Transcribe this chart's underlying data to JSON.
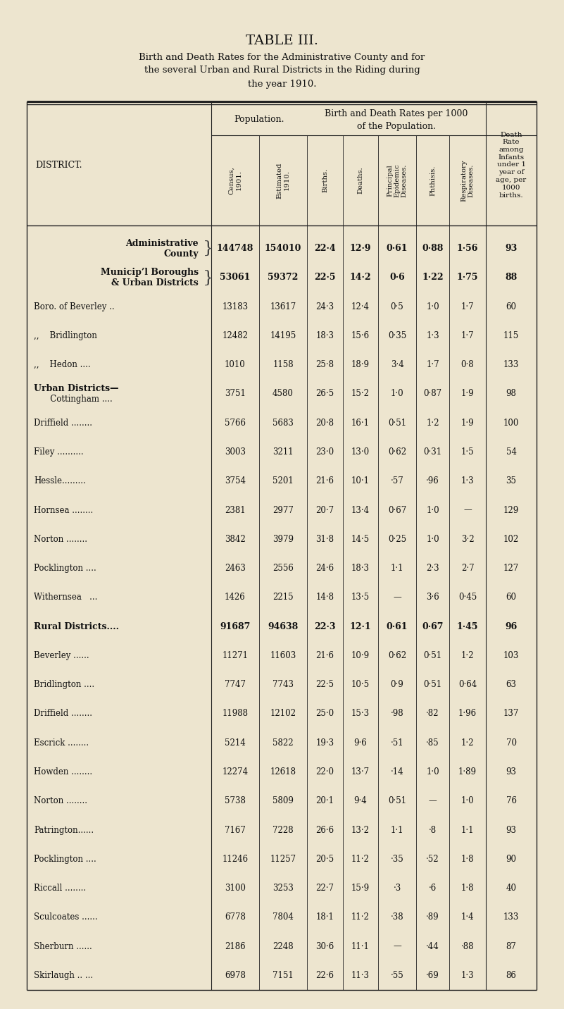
{
  "bg_color": "#ede5cf",
  "title1": "TABLE III.",
  "title2": "Birth and Death Rates for the Administrative County and for\nthe several Urban and Rural Districts in the Riding during\nthe year 1910.",
  "rows": [
    {
      "l1": "Administrative",
      "l2": "County",
      "brace": true,
      "census": "144748",
      "est": "154010",
      "births": "22·4",
      "deaths": "12·9",
      "epid": "0·61",
      "phth": "0·88",
      "resp": "1·56",
      "infant": "93",
      "style": "bold"
    },
    {
      "l1": "Municip’l Boroughs",
      "l2": "& Urban Districts",
      "brace": true,
      "census": "53061",
      "est": "59372",
      "births": "22·5",
      "deaths": "14·2",
      "epid": "0·6",
      "phth": "1·22",
      "resp": "1·75",
      "infant": "88",
      "style": "bold"
    },
    {
      "l1": "Boro. of Beverley ..",
      "l2": "",
      "census": "13183",
      "est": "13617",
      "births": "24·3",
      "deaths": "12·4",
      "epid": "0·5",
      "phth": "1·0",
      "resp": "1·7",
      "infant": "60",
      "style": "normal"
    },
    {
      "l1": ",,    Bridlington",
      "l2": "",
      "census": "12482",
      "est": "14195",
      "births": "18·3",
      "deaths": "15·6",
      "epid": "0·35",
      "phth": "1·3",
      "resp": "1·7",
      "infant": "115",
      "style": "normal"
    },
    {
      "l1": ",,    Hedon ....",
      "l2": "",
      "census": "1010",
      "est": "1158",
      "births": "25·8",
      "deaths": "18·9",
      "epid": "3·4",
      "phth": "1·7",
      "resp": "0·8",
      "infant": "133",
      "style": "normal"
    },
    {
      "l1": "Urban Districts—",
      "l2": "   Cottingham ....",
      "census": "3751",
      "est": "4580",
      "births": "26·5",
      "deaths": "15·2",
      "epid": "1·0",
      "phth": "0·87",
      "resp": "1·9",
      "infant": "98",
      "style": "mixed"
    },
    {
      "l1": "Driffield ........",
      "l2": "",
      "census": "5766",
      "est": "5683",
      "births": "20·8",
      "deaths": "16·1",
      "epid": "0·51",
      "phth": "1·2",
      "resp": "1·9",
      "infant": "100",
      "style": "normal"
    },
    {
      "l1": "Filey ..........",
      "l2": "",
      "census": "3003",
      "est": "3211",
      "births": "23·0",
      "deaths": "13·0",
      "epid": "0·62",
      "phth": "0·31",
      "resp": "1·5",
      "infant": "54",
      "style": "normal"
    },
    {
      "l1": "Hessle.........",
      "l2": "",
      "census": "3754",
      "est": "5201",
      "births": "21·6",
      "deaths": "10·1",
      "epid": "·57",
      "phth": "·96",
      "resp": "1·3",
      "infant": "35",
      "style": "normal"
    },
    {
      "l1": "Hornsea ........",
      "l2": "",
      "census": "2381",
      "est": "2977",
      "births": "20·7",
      "deaths": "13·4",
      "epid": "0·67",
      "phth": "1·0",
      "resp": "—",
      "infant": "129",
      "style": "normal"
    },
    {
      "l1": "Norton ........",
      "l2": "",
      "census": "3842",
      "est": "3979",
      "births": "31·8",
      "deaths": "14·5",
      "epid": "0·25",
      "phth": "1·0",
      "resp": "3·2",
      "infant": "102",
      "style": "normal"
    },
    {
      "l1": "Pocklington ....",
      "l2": "",
      "census": "2463",
      "est": "2556",
      "births": "24·6",
      "deaths": "18·3",
      "epid": "1·1",
      "phth": "2·3",
      "resp": "2·7",
      "infant": "127",
      "style": "normal"
    },
    {
      "l1": "Withernsea   ...",
      "l2": "",
      "census": "1426",
      "est": "2215",
      "births": "14·8",
      "deaths": "13·5",
      "epid": "—",
      "phth": "3·6",
      "resp": "0·45",
      "infant": "60",
      "style": "normal"
    },
    {
      "l1": "Rural Districts....",
      "l2": "",
      "census": "91687",
      "est": "94638",
      "births": "22·3",
      "deaths": "12·1",
      "epid": "0·61",
      "phth": "0·67",
      "resp": "1·45",
      "infant": "96",
      "style": "bold"
    },
    {
      "l1": "Beverley ......",
      "l2": "",
      "census": "11271",
      "est": "11603",
      "births": "21·6",
      "deaths": "10·9",
      "epid": "0·62",
      "phth": "0·51",
      "resp": "1·2",
      "infant": "103",
      "style": "normal"
    },
    {
      "l1": "Bridlington ....",
      "l2": "",
      "census": "7747",
      "est": "7743",
      "births": "22·5",
      "deaths": "10·5",
      "epid": "0·9",
      "phth": "0·51",
      "resp": "0·64",
      "infant": "63",
      "style": "normal"
    },
    {
      "l1": "Driffield ........",
      "l2": "",
      "census": "11988",
      "est": "12102",
      "births": "25·0",
      "deaths": "15·3",
      "epid": "·98",
      "phth": "·82",
      "resp": "1·96",
      "infant": "137",
      "style": "normal"
    },
    {
      "l1": "Escrick ........",
      "l2": "",
      "census": "5214",
      "est": "5822",
      "births": "19·3",
      "deaths": "9·6",
      "epid": "·51",
      "phth": "·85",
      "resp": "1·2",
      "infant": "70",
      "style": "normal"
    },
    {
      "l1": "Howden ........",
      "l2": "",
      "census": "12274",
      "est": "12618",
      "births": "22·0",
      "deaths": "13·7",
      "epid": "·14",
      "phth": "1·0",
      "resp": "1·89",
      "infant": "93",
      "style": "normal"
    },
    {
      "l1": "Norton ........",
      "l2": "",
      "census": "5738",
      "est": "5809",
      "births": "20·1",
      "deaths": "9·4",
      "epid": "0·51",
      "phth": "—",
      "resp": "1·0",
      "infant": "76",
      "style": "normal"
    },
    {
      "l1": "Patrington......",
      "l2": "",
      "census": "7167",
      "est": "7228",
      "births": "26·6",
      "deaths": "13·2",
      "epid": "1·1",
      "phth": "·8",
      "resp": "1·1",
      "infant": "93",
      "style": "normal"
    },
    {
      "l1": "Pocklington ....",
      "l2": "",
      "census": "11246",
      "est": "11257",
      "births": "20·5",
      "deaths": "11·2",
      "epid": "·35",
      "phth": "·52",
      "resp": "1·8",
      "infant": "90",
      "style": "normal"
    },
    {
      "l1": "Riccall ........",
      "l2": "",
      "census": "3100",
      "est": "3253",
      "births": "22·7",
      "deaths": "15·9",
      "epid": "·3",
      "phth": "·6",
      "resp": "1·8",
      "infant": "40",
      "style": "normal"
    },
    {
      "l1": "Sculcoates ......",
      "l2": "",
      "census": "6778",
      "est": "7804",
      "births": "18·1",
      "deaths": "11·2",
      "epid": "·38",
      "phth": "·89",
      "resp": "1·4",
      "infant": "133",
      "style": "normal"
    },
    {
      "l1": "Sherburn ......",
      "l2": "",
      "census": "2186",
      "est": "2248",
      "births": "30·6",
      "deaths": "11·1",
      "epid": "—",
      "phth": "·44",
      "resp": "·88",
      "infant": "87",
      "style": "normal"
    },
    {
      "l1": "Skirlaugh .. ...",
      "l2": "",
      "census": "6978",
      "est": "7151",
      "births": "22·6",
      "deaths": "11·3",
      "epid": "·55",
      "phth": "·69",
      "resp": "1·3",
      "infant": "86",
      "style": "normal"
    }
  ]
}
